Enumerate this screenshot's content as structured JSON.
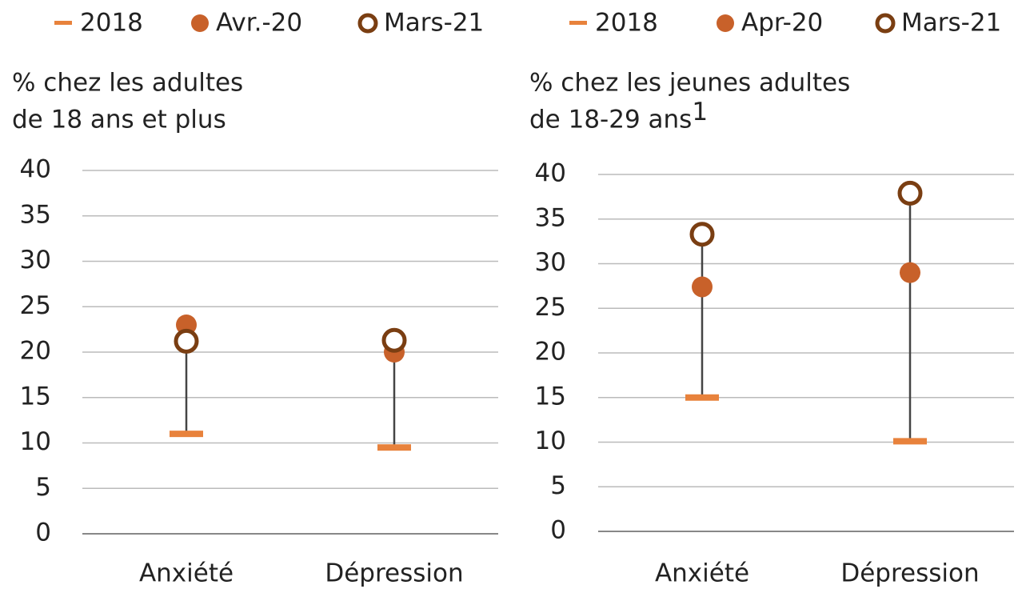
{
  "chart_data": [
    {
      "type": "dot",
      "subtitle": [
        "% chez les adultes",
        "de 18 ans et plus"
      ],
      "categories": [
        "Anxiété",
        "Dépression"
      ],
      "series": [
        {
          "name": "2018",
          "color": "#e8823c",
          "marker": "dash",
          "values": [
            11,
            9.5
          ]
        },
        {
          "name": "Avr.-20",
          "color": "#c8612a",
          "marker": "filled",
          "values": [
            23,
            20
          ]
        },
        {
          "name": "Mars-21",
          "color": "#7a3e12",
          "marker": "hollow",
          "values": [
            21.2,
            21.3
          ]
        }
      ],
      "ylim": [
        0,
        40
      ],
      "yticks": [
        0,
        5,
        10,
        15,
        20,
        25,
        30,
        35,
        40
      ],
      "grid": true
    },
    {
      "type": "dot",
      "subtitle": [
        "% chez les jeunes adultes",
        "de 18-29 ans"
      ],
      "footnote_marker": "1",
      "categories": [
        "Anxiété",
        "Dépression"
      ],
      "series": [
        {
          "name": "2018",
          "color": "#e8823c",
          "marker": "dash",
          "values": [
            15,
            10.1
          ]
        },
        {
          "name": "Apr-20",
          "color": "#c8612a",
          "marker": "filled",
          "values": [
            27.4,
            29
          ]
        },
        {
          "name": "Mars-21",
          "color": "#7a3e12",
          "marker": "hollow",
          "values": [
            33.3,
            37.9
          ]
        }
      ],
      "ylim": [
        0,
        40
      ],
      "yticks": [
        0,
        5,
        10,
        15,
        20,
        25,
        30,
        35,
        40
      ],
      "grid": true
    }
  ]
}
